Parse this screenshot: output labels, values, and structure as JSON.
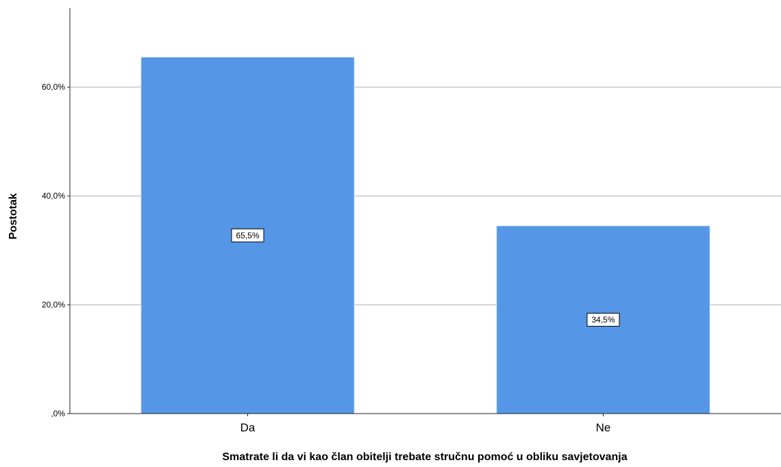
{
  "chart_data": {
    "type": "bar",
    "categories": [
      "Da",
      "Ne"
    ],
    "values": [
      65.5,
      34.5
    ],
    "data_labels": [
      "65,5%",
      "34,5%"
    ],
    "title": "",
    "xlabel": "Smatrate li da vi kao član obitelji trebate stručnu pomoć u obliku savjetovanja",
    "ylabel": "Postotak",
    "ylim": [
      0,
      74.5
    ],
    "yticks": [
      0,
      20,
      40,
      60
    ],
    "ytick_labels": [
      ",0%",
      "20,0%",
      "40,0%",
      "60,0%"
    ],
    "grid": true,
    "legend": "none",
    "bar_color": "#5596e6",
    "bar_edge_color": "#d6e6f7"
  }
}
